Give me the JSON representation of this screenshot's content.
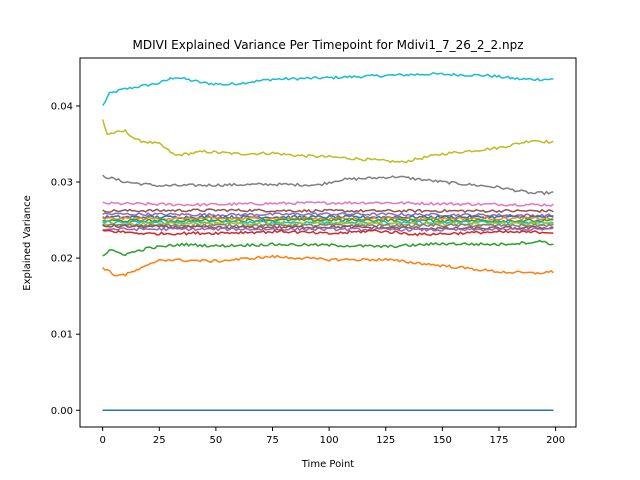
{
  "chart_data": {
    "type": "line",
    "title": "MDIVI Explained Variance Per Timepoint for Mdivi1_7_26_2_2.npz",
    "xlabel": "Time Point",
    "ylabel": "Explained Variance",
    "xlim": [
      -10,
      209
    ],
    "ylim": [
      -0.0022,
      0.0463
    ],
    "xticks": [
      0,
      25,
      50,
      75,
      100,
      125,
      150,
      175,
      200
    ],
    "yticks": [
      0.0,
      0.01,
      0.02,
      0.03,
      0.04
    ],
    "ytick_labels": [
      "0.00",
      "0.01",
      "0.02",
      "0.03",
      "0.04"
    ],
    "grid": false,
    "legend": "none",
    "series_points": 200,
    "series": [
      {
        "color": "#17becf",
        "anchors": [
          [
            0,
            0.04
          ],
          [
            3,
            0.0416
          ],
          [
            8,
            0.0421
          ],
          [
            15,
            0.0425
          ],
          [
            25,
            0.043
          ],
          [
            32,
            0.0438
          ],
          [
            45,
            0.043
          ],
          [
            55,
            0.0428
          ],
          [
            75,
            0.0435
          ],
          [
            100,
            0.0437
          ],
          [
            125,
            0.044
          ],
          [
            145,
            0.0442
          ],
          [
            170,
            0.044
          ],
          [
            185,
            0.0435
          ],
          [
            199,
            0.0435
          ]
        ]
      },
      {
        "color": "#bcbd22",
        "anchors": [
          [
            0,
            0.0382
          ],
          [
            2,
            0.0363
          ],
          [
            10,
            0.0367
          ],
          [
            15,
            0.0355
          ],
          [
            25,
            0.035
          ],
          [
            32,
            0.0335
          ],
          [
            45,
            0.034
          ],
          [
            60,
            0.0337
          ],
          [
            75,
            0.0338
          ],
          [
            85,
            0.0335
          ],
          [
            100,
            0.0333
          ],
          [
            115,
            0.033
          ],
          [
            132,
            0.0326
          ],
          [
            150,
            0.0337
          ],
          [
            175,
            0.0345
          ],
          [
            190,
            0.0355
          ],
          [
            199,
            0.0352
          ]
        ]
      },
      {
        "color": "#7f7f7f",
        "anchors": [
          [
            0,
            0.0308
          ],
          [
            10,
            0.03
          ],
          [
            25,
            0.0295
          ],
          [
            50,
            0.0296
          ],
          [
            75,
            0.0297
          ],
          [
            95,
            0.0296
          ],
          [
            105,
            0.0303
          ],
          [
            130,
            0.0307
          ],
          [
            150,
            0.03
          ],
          [
            175,
            0.0293
          ],
          [
            190,
            0.0285
          ],
          [
            199,
            0.0286
          ]
        ]
      },
      {
        "color": "#e377c2",
        "anchors": [
          [
            0,
            0.0272
          ],
          [
            40,
            0.027
          ],
          [
            80,
            0.0272
          ],
          [
            120,
            0.0273
          ],
          [
            160,
            0.0271
          ],
          [
            199,
            0.027
          ]
        ]
      },
      {
        "color": "#8c564b",
        "anchors": [
          [
            0,
            0.0262
          ],
          [
            50,
            0.0263
          ],
          [
            100,
            0.0262
          ],
          [
            150,
            0.0262
          ],
          [
            199,
            0.0262
          ]
        ]
      },
      {
        "color": "#9467bd",
        "anchors": [
          [
            0,
            0.0258
          ],
          [
            50,
            0.0257
          ],
          [
            100,
            0.0258
          ],
          [
            150,
            0.0257
          ],
          [
            199,
            0.0256
          ]
        ]
      },
      {
        "color": "#1f77b4",
        "anchors": [
          [
            0,
            0.0254
          ],
          [
            50,
            0.0254
          ],
          [
            100,
            0.0254
          ],
          [
            150,
            0.0254
          ],
          [
            199,
            0.0254
          ]
        ]
      },
      {
        "color": "#ff7f0e",
        "anchors": [
          [
            0,
            0.0252
          ],
          [
            100,
            0.0252
          ],
          [
            199,
            0.0252
          ]
        ]
      },
      {
        "color": "#2ca02c",
        "anchors": [
          [
            0,
            0.0249
          ],
          [
            100,
            0.025
          ],
          [
            199,
            0.0249
          ]
        ]
      },
      {
        "color": "#17becf",
        "anchors": [
          [
            0,
            0.0247
          ],
          [
            100,
            0.0247
          ],
          [
            199,
            0.0247
          ]
        ]
      },
      {
        "color": "#bcbd22",
        "anchors": [
          [
            0,
            0.0245
          ],
          [
            100,
            0.0245
          ],
          [
            199,
            0.0245
          ]
        ]
      },
      {
        "color": "#7f7f7f",
        "anchors": [
          [
            0,
            0.0243
          ],
          [
            100,
            0.0243
          ],
          [
            199,
            0.0243
          ]
        ]
      },
      {
        "color": "#8c564b",
        "anchors": [
          [
            0,
            0.0242
          ],
          [
            50,
            0.024
          ],
          [
            100,
            0.0241
          ],
          [
            150,
            0.0239
          ],
          [
            199,
            0.024
          ]
        ]
      },
      {
        "color": "#9467bd",
        "anchors": [
          [
            0,
            0.0238
          ],
          [
            50,
            0.0238
          ],
          [
            100,
            0.0238
          ],
          [
            150,
            0.0237
          ],
          [
            199,
            0.0238
          ]
        ]
      },
      {
        "color": "#d62728",
        "anchors": [
          [
            0,
            0.0236
          ],
          [
            20,
            0.0232
          ],
          [
            50,
            0.0233
          ],
          [
            80,
            0.0235
          ],
          [
            100,
            0.0232
          ],
          [
            120,
            0.0236
          ],
          [
            140,
            0.0231
          ],
          [
            170,
            0.0234
          ],
          [
            199,
            0.0234
          ]
        ]
      },
      {
        "color": "#2ca02c",
        "anchors": [
          [
            0,
            0.0203
          ],
          [
            3,
            0.021
          ],
          [
            10,
            0.0205
          ],
          [
            20,
            0.0213
          ],
          [
            35,
            0.0218
          ],
          [
            50,
            0.0216
          ],
          [
            75,
            0.0218
          ],
          [
            100,
            0.0217
          ],
          [
            125,
            0.0215
          ],
          [
            150,
            0.0219
          ],
          [
            175,
            0.0218
          ],
          [
            195,
            0.0222
          ],
          [
            199,
            0.0217
          ]
        ]
      },
      {
        "color": "#ff7f0e",
        "anchors": [
          [
            0,
            0.0188
          ],
          [
            5,
            0.0178
          ],
          [
            10,
            0.0178
          ],
          [
            20,
            0.019
          ],
          [
            25,
            0.0198
          ],
          [
            50,
            0.0196
          ],
          [
            75,
            0.0202
          ],
          [
            100,
            0.0198
          ],
          [
            125,
            0.0198
          ],
          [
            150,
            0.019
          ],
          [
            175,
            0.0182
          ],
          [
            190,
            0.018
          ],
          [
            199,
            0.0182
          ]
        ]
      },
      {
        "color": "#1f77b4",
        "anchors": [
          [
            0,
            0.0
          ],
          [
            199,
            0.0
          ]
        ]
      },
      {
        "color": "#ff7f0e",
        "anchors": [
          [
            0,
            0.0
          ],
          [
            199,
            0.0
          ]
        ]
      },
      {
        "color": "#2ca02c",
        "anchors": [
          [
            0,
            0.0
          ],
          [
            199,
            0.0
          ]
        ]
      },
      {
        "color": "#d62728",
        "anchors": [
          [
            0,
            0.0
          ],
          [
            199,
            0.0
          ]
        ]
      },
      {
        "color": "#9467bd",
        "anchors": [
          [
            0,
            0.0
          ],
          [
            199,
            0.0
          ]
        ]
      },
      {
        "color": "#8c564b",
        "anchors": [
          [
            0,
            0.0
          ],
          [
            199,
            0.0
          ]
        ]
      },
      {
        "color": "#e377c2",
        "anchors": [
          [
            0,
            0.0
          ],
          [
            199,
            0.0
          ]
        ]
      },
      {
        "color": "#7f7f7f",
        "anchors": [
          [
            0,
            0.0
          ],
          [
            199,
            0.0
          ]
        ]
      },
      {
        "color": "#bcbd22",
        "anchors": [
          [
            0,
            0.0
          ],
          [
            199,
            0.0
          ]
        ]
      },
      {
        "color": "#17becf",
        "anchors": [
          [
            0,
            0.0
          ],
          [
            199,
            0.0
          ]
        ]
      },
      {
        "color": "#1f77b4",
        "anchors": [
          [
            0,
            0.0
          ],
          [
            199,
            0.0
          ]
        ]
      }
    ]
  }
}
